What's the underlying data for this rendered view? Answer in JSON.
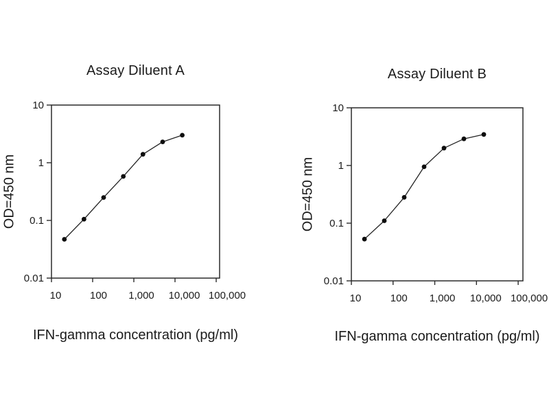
{
  "colors": {
    "background": "#ffffff",
    "text": "#1b1b1b",
    "axis": "#2a2a2a",
    "line": "#222222",
    "marker": "#0d0d0d"
  },
  "chart_data": [
    {
      "type": "line",
      "title": "Assay Diluent A",
      "xlabel": "IFN-gamma concentration (pg/ml)",
      "ylabel": "OD=450 nm",
      "x_scale": "log",
      "y_scale": "log",
      "xlim": [
        10,
        121000
      ],
      "ylim": [
        0.01,
        10
      ],
      "x_ticks": [
        10,
        100,
        1000,
        10000,
        100000
      ],
      "x_tick_labels": [
        "10",
        "100",
        "1,000",
        "10,000",
        "100,000"
      ],
      "y_ticks": [
        0.01,
        0.1,
        1,
        10
      ],
      "y_tick_labels": [
        "0.01",
        "0.1",
        "1",
        "10"
      ],
      "grid": false,
      "legend": null,
      "marker": "filled-circle",
      "x": [
        20.6,
        61.7,
        185,
        556,
        1667,
        5000,
        15000
      ],
      "y": [
        0.047,
        0.105,
        0.25,
        0.58,
        1.4,
        2.3,
        3.0
      ]
    },
    {
      "type": "line",
      "title": "Assay Diluent B",
      "xlabel": "IFN-gamma concentration (pg/ml)",
      "ylabel": "OD=450 nm",
      "x_scale": "log",
      "y_scale": "log",
      "xlim": [
        10,
        130000
      ],
      "ylim": [
        0.01,
        10
      ],
      "x_ticks": [
        10,
        100,
        1000,
        10000,
        100000
      ],
      "x_tick_labels": [
        "10",
        "100",
        "1,000",
        "10,000",
        "100,000"
      ],
      "y_ticks": [
        0.01,
        0.1,
        1,
        10
      ],
      "y_tick_labels": [
        "0.01",
        "0.1",
        "1",
        "10"
      ],
      "grid": false,
      "legend": null,
      "marker": "filled-circle",
      "x": [
        20.6,
        61.7,
        185,
        556,
        1667,
        5000,
        15000
      ],
      "y": [
        0.053,
        0.11,
        0.28,
        0.95,
        2.0,
        2.9,
        3.45
      ]
    }
  ]
}
